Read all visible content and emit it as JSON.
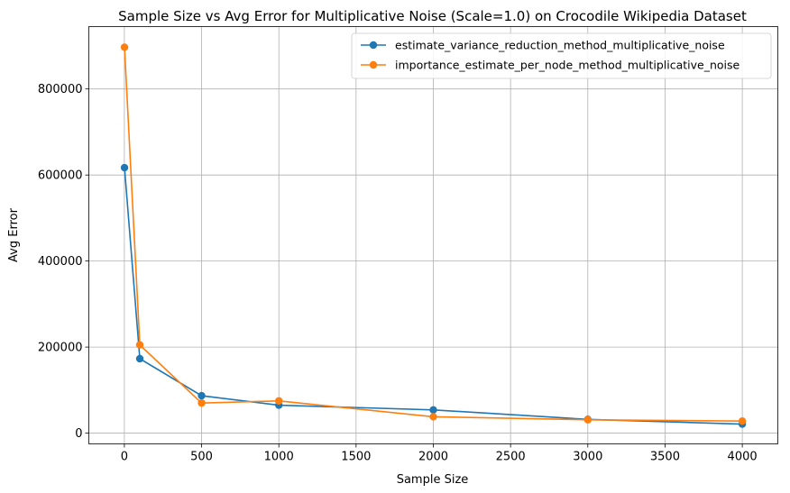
{
  "chart_data": {
    "type": "line",
    "title": "Sample Size vs Avg Error for Multiplicative Noise (Scale=1.0) on Crocodile Wikipedia Dataset",
    "xlabel": "Sample Size",
    "ylabel": "Avg Error",
    "xlim": [
      -230,
      4230
    ],
    "ylim": [
      -25000,
      945000
    ],
    "xticks": [
      0,
      500,
      1000,
      1500,
      2000,
      2500,
      3000,
      3500,
      4000
    ],
    "yticks": [
      0,
      200000,
      400000,
      600000,
      800000
    ],
    "grid": true,
    "legend_position": "top-right",
    "x": [
      1,
      100,
      500,
      1000,
      2000,
      3000,
      4000
    ],
    "series": [
      {
        "name": "estimate_variance_reduction_method_multiplicative_noise",
        "color": "#1f77b4",
        "values": [
          617000,
          173000,
          87000,
          65000,
          54000,
          32000,
          21000
        ]
      },
      {
        "name": "importance_estimate_per_node_method_multiplicative_noise",
        "color": "#ff7f0e",
        "values": [
          897000,
          205000,
          70000,
          75000,
          38000,
          31000,
          28000
        ]
      }
    ]
  }
}
